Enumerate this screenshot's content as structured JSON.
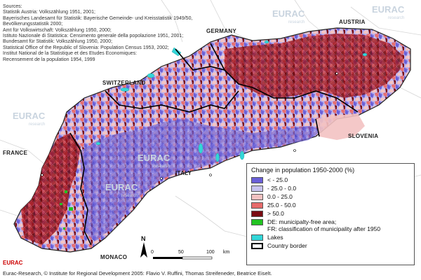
{
  "sources": {
    "heading": "Sources:",
    "lines": [
      "Statistik Austria: Volkszählung 1951, 2001;",
      "Bayerisches Landesamt für Statistik: Bayerische Gemeinde- und Kreisstatistik 1949/50,",
      "Bevölkerungsstatistik 2000;",
      "Amt für Volkswirtschaft: Volkszählung 1950, 2000;",
      "Istituto Nazionale di Statistica: Censimento generale della popolazione 1951, 2001;",
      "Bundesamt für Statistik: Volkszählung 1950, 2000;",
      "Statistical Office of the Republic of Slovenia: Population Census 1953, 2002;",
      "Institut National de la Statistique et des Etudes Economiques:",
      "Recensement de la population 1954, 1999"
    ]
  },
  "countries": {
    "germany": "GERMANY",
    "austria": "AUSTRIA",
    "switzerland": "SWITZERLAND",
    "slovenia": "SLOVENIA",
    "france": "FRANCE",
    "italy": "ITALY",
    "monaco": "MONACO"
  },
  "watermark": {
    "text": "EURAC",
    "sub": "research"
  },
  "legend": {
    "title": "Change in population 1950-2000 (%)",
    "classes": [
      {
        "label": "< - 25.0",
        "color": "#6a5fd8"
      },
      {
        "label": "- 25.0 - 0.0",
        "color": "#c9c4f0"
      },
      {
        "label": "0.0 - 25.0",
        "color": "#f3c2c2"
      },
      {
        "label": "25.0 - 50.0",
        "color": "#e66a6a"
      },
      {
        "label": "> 50.0",
        "color": "#7a0b12"
      }
    ],
    "special": {
      "color": "#22c322",
      "line1": "DE: municipalty-free area;",
      "line2": "FR: classification of municipality after 1950"
    },
    "lakes": {
      "label": "Lakes",
      "color": "#33d6d8"
    },
    "border": {
      "label": "Country border"
    }
  },
  "scale": {
    "ticks": [
      "0",
      "50",
      "100"
    ],
    "unit": "km"
  },
  "north_label": "N",
  "logo": "EURAC",
  "credit": "Eurac-Research, © Institute for Regional Development 2005: Flavio V. Ruffini, Thomas Streifeneder, Beatrice Eiselt."
}
